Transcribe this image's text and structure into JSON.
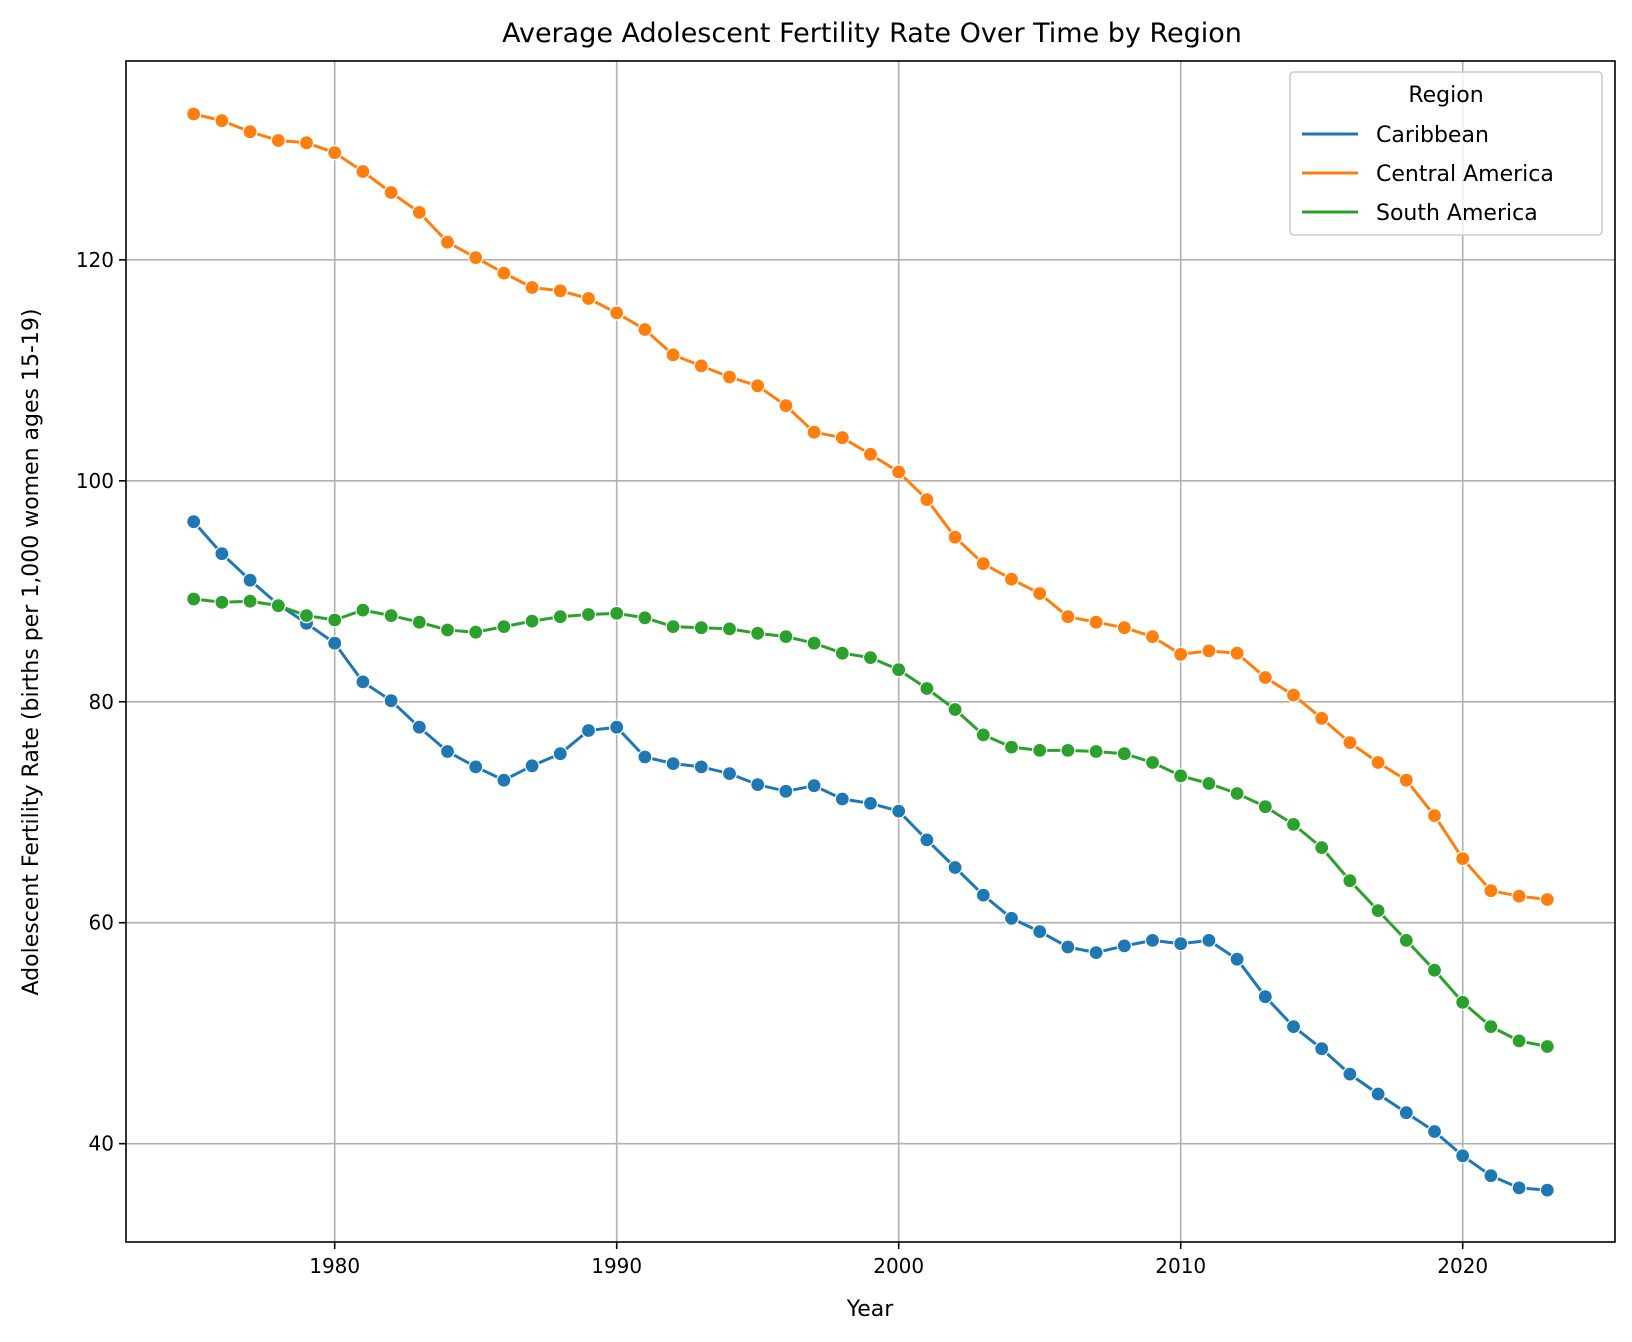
{
  "chart_data": {
    "type": "line",
    "title": "Average Adolescent Fertility Rate Over Time by Region",
    "xlabel": "Year",
    "ylabel": "Adolescent Fertility Rate (births per 1,000 women ages 15-19)",
    "xlim": [
      1972.6,
      2025.4
    ],
    "ylim": [
      31.1,
      138.0
    ],
    "x_ticks": [
      1980,
      1990,
      2000,
      2010,
      2020
    ],
    "y_ticks": [
      40,
      60,
      80,
      100,
      120
    ],
    "grid": true,
    "legend": {
      "title": "Region",
      "placement": "top-right"
    },
    "x": [
      1975,
      1976,
      1977,
      1978,
      1979,
      1980,
      1981,
      1982,
      1983,
      1984,
      1985,
      1986,
      1987,
      1988,
      1989,
      1990,
      1991,
      1992,
      1993,
      1994,
      1995,
      1996,
      1997,
      1998,
      1999,
      2000,
      2001,
      2002,
      2003,
      2004,
      2005,
      2006,
      2007,
      2008,
      2009,
      2010,
      2011,
      2012,
      2013,
      2014,
      2015,
      2016,
      2017,
      2018,
      2019,
      2020,
      2021,
      2022,
      2023
    ],
    "series": [
      {
        "name": "Caribbean",
        "color": "#1f77b4",
        "values": [
          96.3,
          93.4,
          91.0,
          88.8,
          87.1,
          85.3,
          81.8,
          80.1,
          77.7,
          75.5,
          74.1,
          72.9,
          74.2,
          75.3,
          77.4,
          77.7,
          75.0,
          74.4,
          74.1,
          73.5,
          72.5,
          71.9,
          72.4,
          71.2,
          70.8,
          70.1,
          67.5,
          65.0,
          62.5,
          60.4,
          59.2,
          57.8,
          57.3,
          57.9,
          58.4,
          58.1,
          58.4,
          56.7,
          53.3,
          50.6,
          48.6,
          46.3,
          44.5,
          42.8,
          41.1,
          38.9,
          37.1,
          36.0,
          35.8
        ]
      },
      {
        "name": "Central America",
        "color": "#ff7f0e",
        "values": [
          133.2,
          132.6,
          131.6,
          130.8,
          130.6,
          129.7,
          128.0,
          126.1,
          124.3,
          121.6,
          120.2,
          118.8,
          117.5,
          117.2,
          116.5,
          115.2,
          113.7,
          111.4,
          110.4,
          109.4,
          108.6,
          106.8,
          104.4,
          103.9,
          102.4,
          100.8,
          98.3,
          94.9,
          92.5,
          91.1,
          89.8,
          87.7,
          87.2,
          86.7,
          85.9,
          84.3,
          84.6,
          84.4,
          82.2,
          80.6,
          78.5,
          76.3,
          74.5,
          72.9,
          69.7,
          65.8,
          62.9,
          62.4,
          62.1
        ]
      },
      {
        "name": "South America",
        "color": "#2ca02c",
        "values": [
          89.3,
          89.0,
          89.1,
          88.7,
          87.8,
          87.4,
          88.3,
          87.8,
          87.2,
          86.5,
          86.3,
          86.8,
          87.3,
          87.7,
          87.9,
          88.0,
          87.6,
          86.8,
          86.7,
          86.6,
          86.2,
          85.9,
          85.3,
          84.4,
          84.0,
          82.9,
          81.2,
          79.3,
          77.0,
          75.9,
          75.6,
          75.6,
          75.5,
          75.3,
          74.5,
          73.3,
          72.6,
          71.7,
          70.5,
          68.9,
          66.8,
          63.8,
          61.1,
          58.4,
          55.7,
          52.8,
          50.6,
          49.3,
          48.8
        ]
      }
    ]
  }
}
